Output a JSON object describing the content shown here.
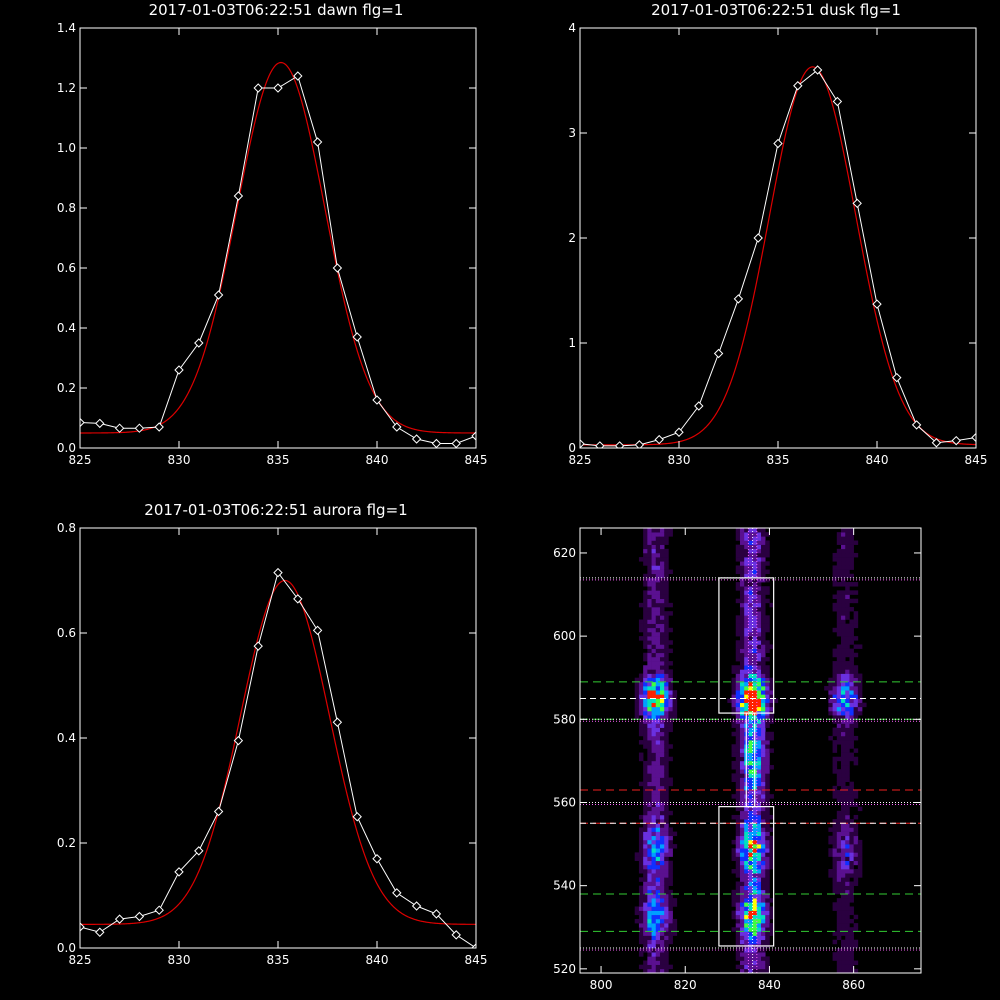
{
  "chart_data": [
    {
      "type": "line",
      "title": "2017-01-03T06:22:51 dawn flg=1",
      "xlim": [
        825,
        845
      ],
      "ylim": [
        0,
        1.4
      ],
      "xticks": [
        825,
        830,
        835,
        840,
        845
      ],
      "yticks": [
        0.0,
        0.2,
        0.4,
        0.6,
        0.8,
        1.0,
        1.2,
        1.4
      ],
      "ytick_labels": [
        "0.0",
        "0.2",
        "0.4",
        "0.6",
        "0.8",
        "1.0",
        "1.2",
        "1.4"
      ],
      "series": [
        {
          "kind": "data",
          "color": "#ffffff",
          "marker": "diamond",
          "x": [
            825,
            826,
            827,
            828,
            829,
            830,
            831,
            832,
            833,
            834,
            835,
            836,
            837,
            838,
            839,
            840,
            841,
            842,
            843,
            844,
            845
          ],
          "y": [
            0.085,
            0.082,
            0.066,
            0.066,
            0.07,
            0.26,
            0.35,
            0.51,
            0.84,
            1.2,
            1.2,
            1.24,
            1.02,
            0.6,
            0.37,
            0.16,
            0.07,
            0.03,
            0.015,
            0.015,
            0.04
          ]
        },
        {
          "kind": "fit",
          "color": "#dd0000",
          "gaussian": {
            "amplitude": 1.235,
            "center": 835.15,
            "sigma": 2.22,
            "offset": 0.05
          }
        }
      ]
    },
    {
      "type": "line",
      "title": "2017-01-03T06:22:51 dusk flg=1",
      "xlim": [
        825,
        845
      ],
      "ylim": [
        0,
        4
      ],
      "xticks": [
        825,
        830,
        835,
        840,
        845
      ],
      "yticks": [
        0,
        1,
        2,
        3,
        4
      ],
      "ytick_labels": [
        "0",
        "1",
        "2",
        "3",
        "4"
      ],
      "series": [
        {
          "kind": "data",
          "color": "#ffffff",
          "marker": "diamond",
          "x": [
            825,
            826,
            827,
            828,
            829,
            830,
            831,
            832,
            833,
            834,
            835,
            836,
            837,
            838,
            839,
            840,
            841,
            842,
            843,
            844,
            845
          ],
          "y": [
            0.04,
            0.02,
            0.02,
            0.03,
            0.08,
            0.15,
            0.4,
            0.9,
            1.42,
            2.0,
            2.9,
            3.45,
            3.6,
            3.3,
            2.33,
            1.37,
            0.67,
            0.22,
            0.05,
            0.07,
            0.1
          ]
        },
        {
          "kind": "fit",
          "color": "#dd0000",
          "gaussian": {
            "amplitude": 3.6,
            "center": 836.75,
            "sigma": 2.18,
            "offset": 0.03
          }
        }
      ]
    },
    {
      "type": "line",
      "title": "2017-01-03T06:22:51 aurora flg=1",
      "xlim": [
        825,
        845
      ],
      "ylim": [
        0,
        0.8
      ],
      "xticks": [
        825,
        830,
        835,
        840,
        845
      ],
      "yticks": [
        0.0,
        0.2,
        0.4,
        0.6,
        0.8
      ],
      "ytick_labels": [
        "0.0",
        "0.2",
        "0.4",
        "0.6",
        "0.8"
      ],
      "series": [
        {
          "kind": "data",
          "color": "#ffffff",
          "marker": "diamond",
          "x": [
            825,
            826,
            827,
            828,
            829,
            830,
            831,
            832,
            833,
            834,
            835,
            836,
            837,
            838,
            839,
            840,
            841,
            842,
            843,
            844,
            845
          ],
          "y": [
            0.04,
            0.03,
            0.055,
            0.06,
            0.072,
            0.145,
            0.185,
            0.26,
            0.395,
            0.575,
            0.715,
            0.665,
            0.605,
            0.43,
            0.25,
            0.17,
            0.105,
            0.08,
            0.065,
            0.025,
            0.0
          ]
        },
        {
          "kind": "fit",
          "color": "#dd0000",
          "gaussian": {
            "amplitude": 0.655,
            "center": 835.35,
            "sigma": 2.25,
            "offset": 0.045
          }
        }
      ]
    },
    {
      "type": "heatmap",
      "title": "",
      "xlim": [
        795,
        876
      ],
      "ylim": [
        519,
        626
      ],
      "xticks": [
        800,
        820,
        840,
        860
      ],
      "yticks": [
        520,
        540,
        560,
        580,
        600,
        620
      ],
      "colormap": [
        "#000000",
        "#2a0040",
        "#5a1090",
        "#6a30e0",
        "#1030ff",
        "#00a0ff",
        "#00e0c0",
        "#40ff40",
        "#ffff00",
        "#ff2000"
      ],
      "emission_columns": [
        {
          "x": 813,
          "width": 2.2,
          "peaks": [
            {
              "y": 585,
              "level": 0.72,
              "ysig": 3.2
            },
            {
              "y": 549,
              "level": 0.32,
              "ysig": 4
            },
            {
              "y": 533,
              "level": 0.42,
              "ysig": 3.5
            }
          ],
          "base": 0.2
        },
        {
          "x": 836,
          "width": 2.2,
          "peaks": [
            {
              "y": 585,
              "level": 1.0,
              "ysig": 3.2
            },
            {
              "y": 549,
              "level": 0.45,
              "ysig": 4
            },
            {
              "y": 533,
              "level": 0.5,
              "ysig": 3.5
            },
            {
              "y": 570,
              "level": 0.3,
              "ysig": 6
            }
          ],
          "base": 0.28
        },
        {
          "x": 858,
          "width": 2.2,
          "peaks": [
            {
              "y": 585,
              "level": 0.42,
              "ysig": 3.2
            },
            {
              "y": 548,
              "level": 0.2,
              "ysig": 4
            }
          ],
          "base": 0.12
        }
      ],
      "overlays": {
        "white_boxes": [
          [
            828,
            841,
            581.5,
            614
          ],
          [
            828,
            841,
            525.5,
            559
          ],
          [
            834.5,
            836.5,
            559,
            581.5
          ]
        ],
        "white_dashed_y": [
          585,
          555
        ],
        "white_dotted_y": [
          580,
          614,
          560,
          525
        ],
        "white_dotted_x": [
          836
        ],
        "magenta_dotted_x": [
          835,
          837
        ],
        "magenta_dotted_y": [
          614,
          580,
          560,
          525
        ],
        "green_dashed_y": [
          589,
          580,
          538,
          529
        ],
        "red_dashed_y": [
          563,
          555
        ]
      }
    }
  ]
}
